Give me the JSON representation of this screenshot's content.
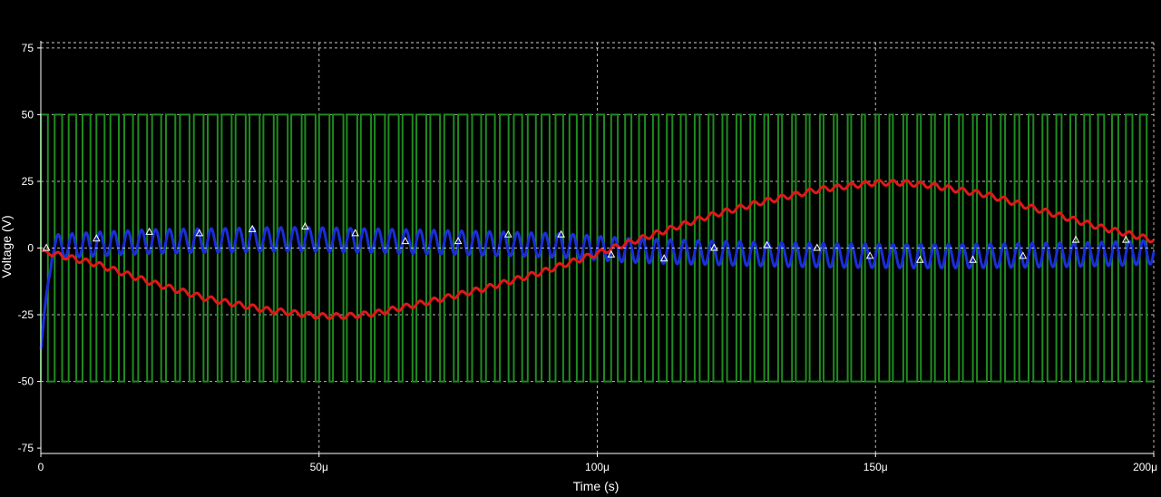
{
  "chart_data": {
    "type": "line",
    "title": "",
    "xlabel": "Time (s)",
    "ylabel": "Voltage (V)",
    "xlim": [
      0,
      200
    ],
    "ylim": [
      -77,
      77
    ],
    "x_unit_suffix": "μ",
    "x_ticks": [
      0,
      50,
      100,
      150,
      200
    ],
    "x_tick_labels": [
      "0",
      "50μ",
      "100μ",
      "150μ",
      "200μ"
    ],
    "y_ticks": [
      75,
      50,
      25,
      0,
      -25,
      -50,
      -75
    ],
    "y_tick_labels": [
      "75",
      "50",
      "25",
      "0",
      "-25",
      "-50",
      "-75"
    ],
    "grid": true,
    "legend": "none",
    "colors": {
      "background": "#000000",
      "grid": "#cfcfcf",
      "axis": "#ffffff",
      "text": "#ffffff",
      "marker": "#ffffff"
    },
    "series": [
      {
        "id": "pwm",
        "kind": "square",
        "color": "#1f8b1f",
        "high": 50,
        "low": -50,
        "carrier_period": 2.5,
        "duty_center": 0.5,
        "duty_amplitude": 0.25,
        "modulation_period": 200,
        "x_range": [
          0,
          200
        ]
      },
      {
        "id": "ripple",
        "kind": "sine_ripple",
        "color": "#1a2ed8",
        "x": [
          0,
          2,
          10,
          20,
          30,
          40,
          47,
          55,
          65,
          75,
          85,
          95,
          100,
          105,
          115,
          125,
          135,
          145,
          155,
          165,
          175,
          185,
          195,
          200
        ],
        "offset": [
          -38,
          0.5,
          1.5,
          2.5,
          2.8,
          3.2,
          3.3,
          3.0,
          2.5,
          2.0,
          1.5,
          0.8,
          0,
          -0.8,
          -1.5,
          -2.0,
          -2.5,
          -2.8,
          -3.0,
          -3.0,
          -2.8,
          -2.5,
          -2.0,
          -1.5
        ],
        "amplitude": 4.5,
        "period": 2.5,
        "x_range": [
          0,
          200
        ]
      },
      {
        "id": "filtered",
        "kind": "sine_ripple",
        "color": "#e01818",
        "x": [
          0,
          10,
          20,
          30,
          40,
          50,
          55,
          60,
          70,
          80,
          90,
          100,
          110,
          120,
          130,
          140,
          150,
          155,
          160,
          170,
          180,
          190,
          200
        ],
        "offset": [
          -1,
          -6,
          -13,
          -19,
          -23,
          -25.5,
          -25.5,
          -24.5,
          -20,
          -15,
          -9,
          -2,
          5,
          12,
          17.5,
          22,
          24.5,
          24.5,
          23.5,
          20,
          14,
          8,
          3
        ],
        "amplitude": 1.0,
        "period": 2.5,
        "x_range": [
          0,
          200
        ]
      }
    ],
    "markers": [
      {
        "x": 1,
        "y": 0
      },
      {
        "x": 10,
        "y": 3.5
      },
      {
        "x": 19.5,
        "y": 6
      },
      {
        "x": 28.5,
        "y": 5.5
      },
      {
        "x": 38,
        "y": 7
      },
      {
        "x": 47.5,
        "y": 8
      },
      {
        "x": 56.5,
        "y": 5.5
      },
      {
        "x": 65.5,
        "y": 2.5
      },
      {
        "x": 75,
        "y": 2.5
      },
      {
        "x": 84,
        "y": 5
      },
      {
        "x": 93.5,
        "y": 5
      },
      {
        "x": 102.5,
        "y": -2.5
      },
      {
        "x": 112,
        "y": -4
      },
      {
        "x": 121,
        "y": 0
      },
      {
        "x": 130.5,
        "y": 1
      },
      {
        "x": 139.5,
        "y": 0
      },
      {
        "x": 149,
        "y": -3
      },
      {
        "x": 158,
        "y": -4.5
      },
      {
        "x": 167.5,
        "y": -4.5
      },
      {
        "x": 176.5,
        "y": -3
      },
      {
        "x": 186,
        "y": 3
      },
      {
        "x": 195,
        "y": 3
      }
    ]
  }
}
